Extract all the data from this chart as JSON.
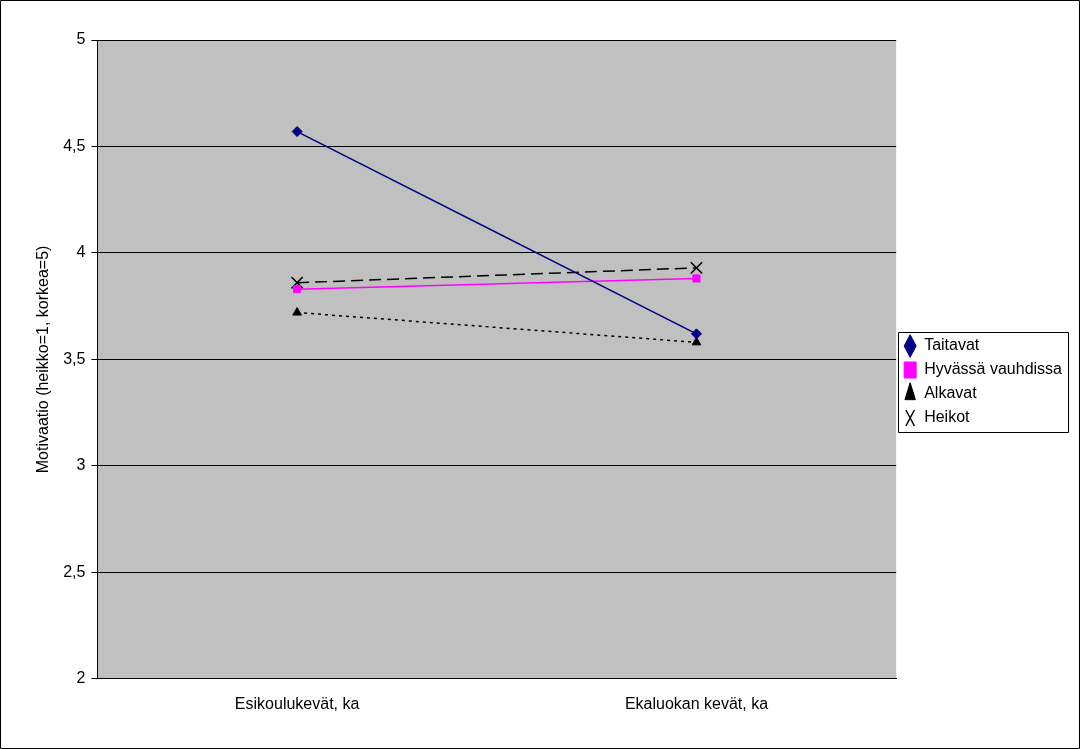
{
  "chart_data": {
    "type": "line",
    "ylabel": "Motivaatio (heikko=1, korkea=5)",
    "categories": [
      "Esikoulukevät, ka",
      "Ekaluokan kevät, ka"
    ],
    "series": [
      {
        "name": "Taitavat",
        "color": "#000080",
        "values": [
          4.57,
          3.62
        ],
        "marker": "diamond",
        "line_style": "solid"
      },
      {
        "name": "Hyvässä vauhdissa",
        "color": "#ff00ff",
        "values": [
          3.83,
          3.88
        ],
        "marker": "square",
        "line_style": "solid"
      },
      {
        "name": "Alkavat",
        "color": "#000000",
        "values": [
          3.72,
          3.58
        ],
        "marker": "triangle",
        "line_style": "dotted"
      },
      {
        "name": "Heikot",
        "color": "#000000",
        "values": [
          3.86,
          3.93
        ],
        "marker": "cross",
        "line_style": "dashed"
      }
    ],
    "ylim": [
      2,
      5
    ],
    "yticks": [
      {
        "value": 2,
        "label": "2"
      },
      {
        "value": 2.5,
        "label": "2,5"
      },
      {
        "value": 3,
        "label": "3"
      },
      {
        "value": 3.5,
        "label": "3,5"
      },
      {
        "value": 4,
        "label": "4"
      },
      {
        "value": 4.5,
        "label": "4,5"
      },
      {
        "value": 5,
        "label": "5"
      }
    ],
    "grid": "y",
    "legend": "right"
  }
}
